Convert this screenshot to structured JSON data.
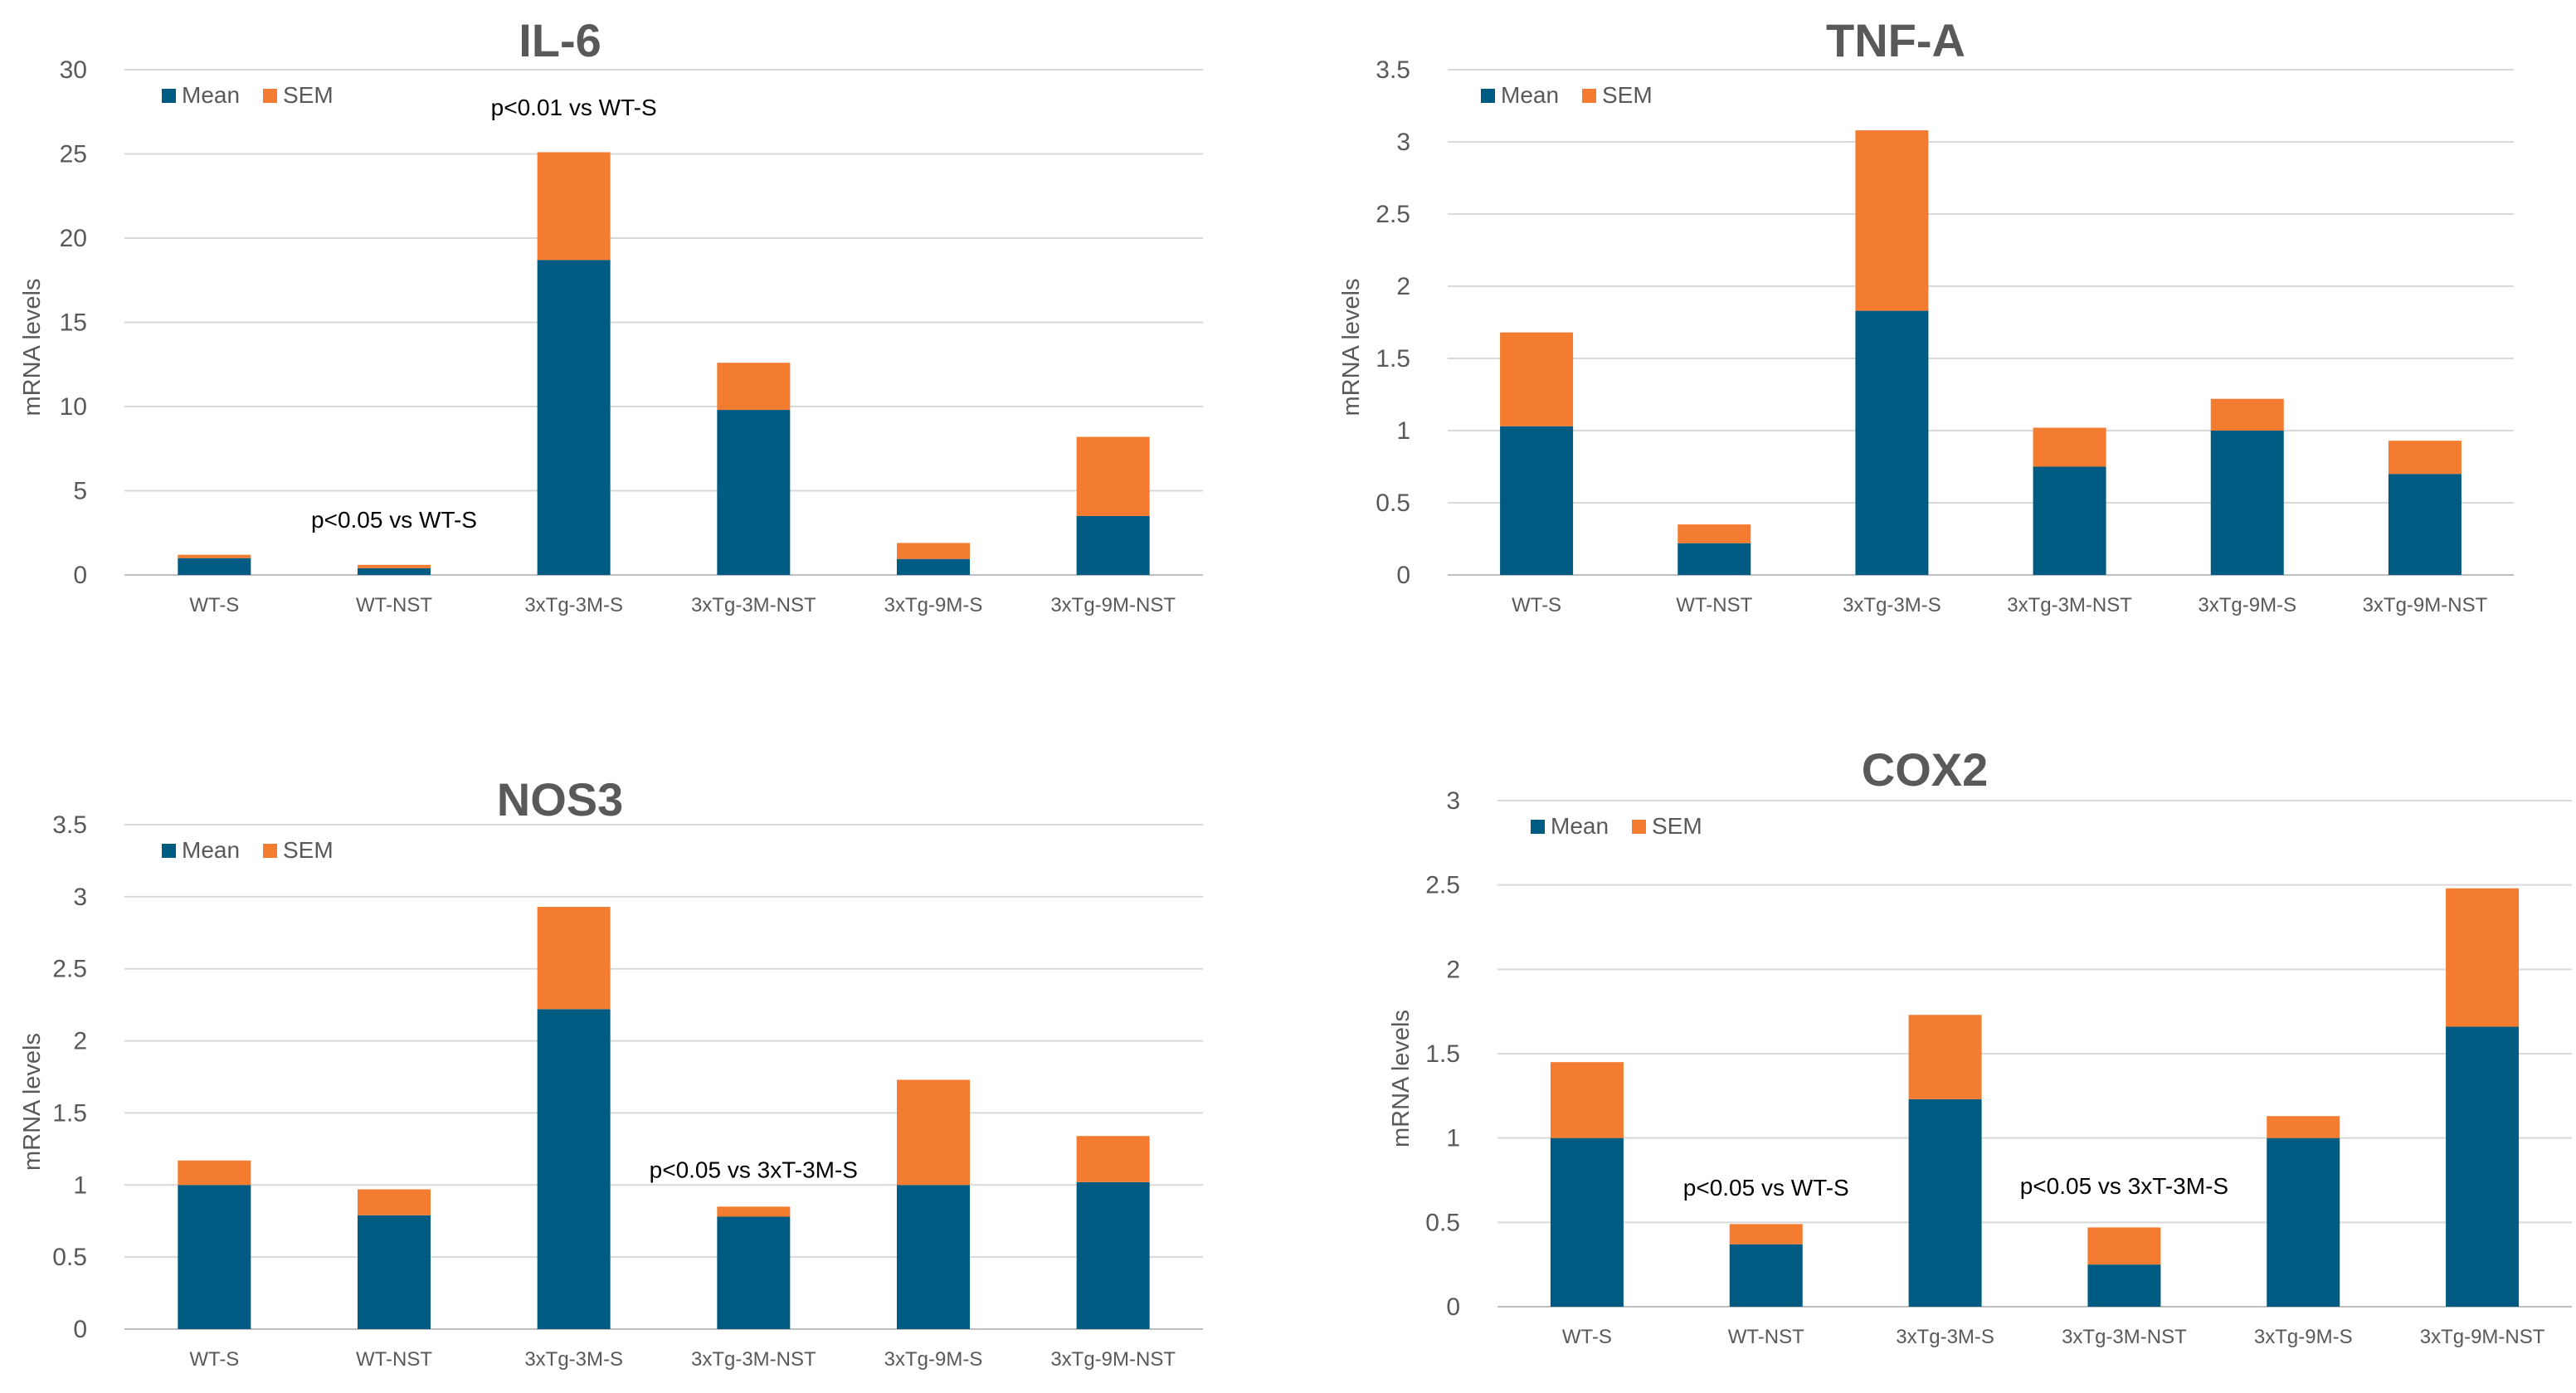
{
  "chart_data": [
    {
      "type": "bar",
      "stacked": true,
      "title": "IL-6",
      "ylabel": "mRNA levels",
      "xlabel": "",
      "ylim": [
        0,
        30
      ],
      "yticks": [
        0,
        5,
        10,
        15,
        20,
        25,
        30
      ],
      "ytick_labels": [
        "0",
        "5",
        "10",
        "15",
        "20",
        "25",
        "30"
      ],
      "categories": [
        "WT-S",
        "WT-NST",
        "3xTg-3M-S",
        "3xTg-3M-NST",
        "3xTg-9M-S",
        "3xTg-9M-NST"
      ],
      "series": [
        {
          "name": "Mean",
          "color": "#005b83",
          "values": [
            1.0,
            0.4,
            18.7,
            9.8,
            0.95,
            3.5
          ]
        },
        {
          "name": "SEM",
          "color": "#f47c30",
          "values": [
            0.2,
            0.2,
            6.4,
            2.8,
            0.95,
            4.7
          ]
        }
      ],
      "annotations": [
        {
          "text": "p<0.01 vs WT-S",
          "category": "3xTg-3M-S",
          "value": 27.3
        },
        {
          "text": "p<0.05 vs WT-S",
          "category": "WT-NST",
          "value": 2.8
        }
      ],
      "legend": "top-left"
    },
    {
      "type": "bar",
      "stacked": true,
      "title": "TNF-A",
      "ylabel": "mRNA levels",
      "xlabel": "",
      "ylim": [
        0,
        3.5
      ],
      "yticks": [
        0,
        0.5,
        1,
        1.5,
        2,
        2.5,
        3,
        3.5
      ],
      "ytick_labels": [
        "0",
        "0.5",
        "1",
        "1.5",
        "2",
        "2.5",
        "3",
        "3.5"
      ],
      "categories": [
        "WT-S",
        "WT-NST",
        "3xTg-3M-S",
        "3xTg-3M-NST",
        "3xTg-9M-S",
        "3xTg-9M-NST"
      ],
      "series": [
        {
          "name": "Mean",
          "color": "#005b83",
          "values": [
            1.03,
            0.22,
            1.83,
            0.75,
            1.0,
            0.7
          ]
        },
        {
          "name": "SEM",
          "color": "#f47c30",
          "values": [
            0.65,
            0.13,
            1.25,
            0.27,
            0.22,
            0.23
          ]
        }
      ],
      "annotations": [],
      "legend": "top-left"
    },
    {
      "type": "bar",
      "stacked": true,
      "title": "NOS3",
      "ylabel": "mRNA levels",
      "xlabel": "",
      "ylim": [
        0,
        3.5
      ],
      "yticks": [
        0,
        0.5,
        1,
        1.5,
        2,
        2.5,
        3,
        3.5
      ],
      "ytick_labels": [
        "0",
        "0.5",
        "1",
        "1.5",
        "2",
        "2.5",
        "3",
        "3.5"
      ],
      "categories": [
        "WT-S",
        "WT-NST",
        "3xTg-3M-S",
        "3xTg-3M-NST",
        "3xTg-9M-S",
        "3xTg-9M-NST"
      ],
      "series": [
        {
          "name": "Mean",
          "color": "#005b83",
          "values": [
            1.0,
            0.79,
            2.22,
            0.78,
            1.0,
            1.02
          ]
        },
        {
          "name": "SEM",
          "color": "#f47c30",
          "values": [
            0.17,
            0.18,
            0.71,
            0.07,
            0.73,
            0.32
          ]
        }
      ],
      "annotations": [
        {
          "text": "p<0.05 vs 3xT-3M-S",
          "category": "3xTg-3M-NST",
          "value": 1.05
        }
      ],
      "legend": "top-left"
    },
    {
      "type": "bar",
      "stacked": true,
      "title": "COX2",
      "ylabel": "mRNA levels",
      "xlabel": "",
      "ylim": [
        0,
        3
      ],
      "yticks": [
        0,
        0.5,
        1,
        1.5,
        2,
        2.5,
        3
      ],
      "ytick_labels": [
        "0",
        "0.5",
        "1",
        "1.5",
        "2",
        "2.5",
        "3"
      ],
      "categories": [
        "WT-S",
        "WT-NST",
        "3xTg-3M-S",
        "3xTg-3M-NST",
        "3xTg-9M-S",
        "3xTg-9M-NST"
      ],
      "series": [
        {
          "name": "Mean",
          "color": "#005b83",
          "values": [
            1.0,
            0.37,
            1.23,
            0.25,
            1.0,
            1.66
          ]
        },
        {
          "name": "SEM",
          "color": "#f47c30",
          "values": [
            0.45,
            0.12,
            0.5,
            0.22,
            0.13,
            0.82
          ]
        }
      ],
      "annotations": [
        {
          "text": "p<0.05 vs WT-S",
          "category": "WT-NST",
          "value": 0.66
        },
        {
          "text": "p<0.05 vs 3xT-3M-S",
          "category": "3xTg-3M-NST",
          "value": 0.67
        }
      ],
      "legend": "top-left"
    }
  ]
}
